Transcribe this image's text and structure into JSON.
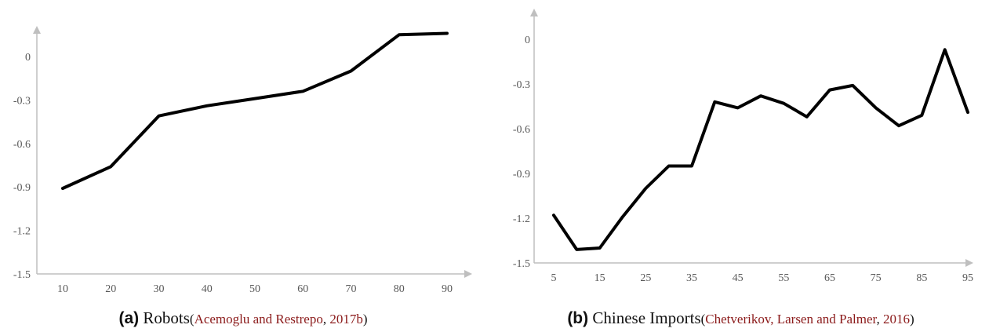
{
  "chart_data": [
    {
      "type": "line",
      "x": [
        10,
        20,
        30,
        40,
        50,
        60,
        70,
        80,
        90
      ],
      "values": [
        -0.91,
        -0.76,
        -0.41,
        -0.34,
        -0.29,
        -0.24,
        -0.1,
        0.15,
        0.16
      ],
      "xticks": [
        "10",
        "20",
        "30",
        "40",
        "50",
        "60",
        "70",
        "80",
        "90"
      ],
      "yticks": [
        "0",
        "-0.3",
        "-0.6",
        "-0.9",
        "-1.2",
        "-1.5"
      ],
      "ylim": [
        -1.5,
        0
      ],
      "line_color": "#000000",
      "axis_color": "#bfbfbf",
      "caption": {
        "letter": "(a)",
        "title": "Robots",
        "open": "(",
        "authors": "Acemoglu and Restrepo",
        "sep": ", ",
        "year": "2017b",
        "close": ")"
      }
    },
    {
      "type": "line",
      "x": [
        5,
        10,
        15,
        20,
        25,
        30,
        35,
        40,
        45,
        50,
        55,
        60,
        65,
        70,
        75,
        80,
        85,
        90,
        95
      ],
      "values": [
        -1.18,
        -1.41,
        -1.4,
        -1.19,
        -1.0,
        -0.85,
        -0.85,
        -0.42,
        -0.46,
        -0.38,
        -0.43,
        -0.52,
        -0.34,
        -0.31,
        -0.46,
        -0.58,
        -0.51,
        -0.07,
        -0.49
      ],
      "xticks": [
        "5",
        "15",
        "25",
        "35",
        "45",
        "55",
        "65",
        "75",
        "85",
        "95"
      ],
      "yticks": [
        "0",
        "-0.3",
        "-0.6",
        "-0.9",
        "-1.2",
        "-1.5"
      ],
      "ylim": [
        -1.5,
        0
      ],
      "line_color": "#000000",
      "axis_color": "#bfbfbf",
      "caption": {
        "letter": "(b)",
        "title": "Chinese Imports",
        "open": "(",
        "authors": "Chetverikov, Larsen and Palmer",
        "sep": ", ",
        "year": "2016",
        "close": ")"
      }
    }
  ]
}
